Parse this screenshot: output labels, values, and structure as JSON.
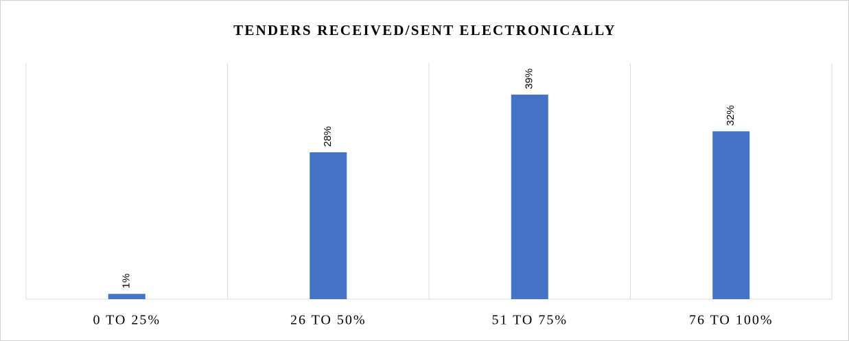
{
  "chart_data": {
    "type": "bar",
    "title": "TENDERS RECEIVED/SENT ELECTRONICALLY",
    "categories": [
      "0 TO 25%",
      "26 TO 50%",
      "51 TO 75%",
      "76 TO 100%"
    ],
    "values": [
      1,
      28,
      39,
      32
    ],
    "value_labels": [
      "1%",
      "28%",
      "39%",
      "32%"
    ],
    "color": "#4472c4",
    "ylim": [
      0,
      45
    ]
  }
}
